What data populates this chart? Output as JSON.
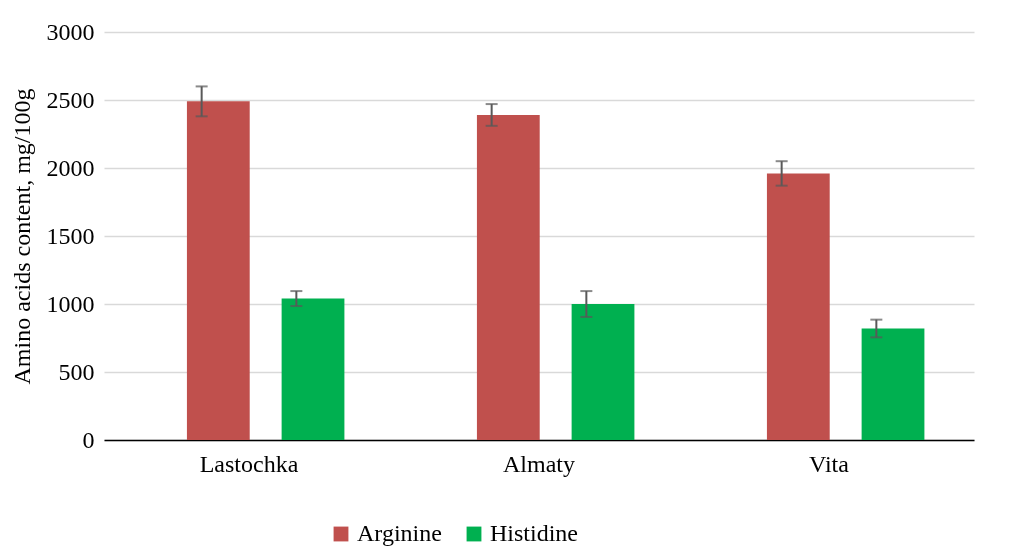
{
  "chart_data": {
    "type": "bar",
    "ylabel": "Amino  acids content, mg/100g",
    "categories": [
      "Lastochka",
      "Almaty",
      "Vita"
    ],
    "series": [
      {
        "name": "Arginine",
        "color": "#c0504d",
        "values": [
          2490,
          2390,
          1960
        ],
        "errors": [
          110,
          80,
          90
        ]
      },
      {
        "name": "Histidine",
        "color": "#00b050",
        "values": [
          1040,
          1000,
          820
        ],
        "errors": [
          55,
          95,
          65
        ]
      }
    ],
    "ylim": [
      0,
      3000
    ],
    "yticks": [
      0,
      500,
      1000,
      1500,
      2000,
      2500,
      3000
    ],
    "grid": "y",
    "legend": "bottom"
  }
}
